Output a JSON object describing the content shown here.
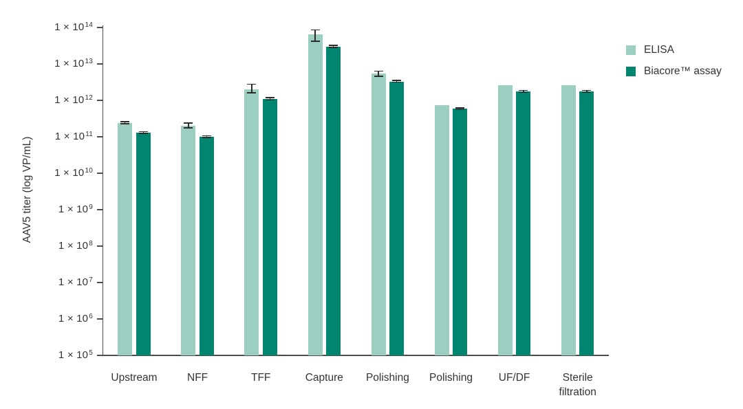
{
  "figure": {
    "background": "#ffffff",
    "axis_color": "#4d4d4d",
    "text_color": "#333333",
    "error_bar_color": "#2b2b2b"
  },
  "legend": {
    "items": [
      {
        "label": "ELISA",
        "color": "#9DCEC2"
      },
      {
        "label": "Biacore™ assay",
        "color": "#008570"
      }
    ]
  },
  "chart_data": {
    "type": "bar",
    "title": "",
    "xlabel": "",
    "ylabel": "AAV5 titer (log VP/mL)",
    "y_scale": "log10",
    "ylim": [
      100000.0,
      100000000000000.0
    ],
    "y_tick_prefix": "1 × 10",
    "y_tick_exponents": [
      14,
      13,
      12,
      11,
      10,
      9,
      8,
      7,
      6,
      5
    ],
    "grid": false,
    "legend_position": "top-right",
    "categories": [
      "Upstream",
      "NFF",
      "TFF",
      "Capture",
      "Polishing",
      "Polishing",
      "UF/DF",
      "Sterile filtration"
    ],
    "series": [
      {
        "name": "ELISA",
        "color": "#9DCEC2",
        "values": [
          240000000000.0,
          200000000000.0,
          2000000000000.0,
          65000000000000.0,
          5500000000000.0,
          740000000000.0,
          2600000000000.0,
          2600000000000.0
        ],
        "err_hi": [
          260000000000.0,
          240000000000.0,
          2800000000000.0,
          87000000000000.0,
          6400000000000.0,
          null,
          null,
          null
        ],
        "err_lo": [
          230000000000.0,
          175000000000.0,
          1600000000000.0,
          42000000000000.0,
          4600000000000.0,
          null,
          null,
          null
        ]
      },
      {
        "name": "Biacore™ assay",
        "color": "#008570",
        "values": [
          130000000000.0,
          100000000000.0,
          1100000000000.0,
          30000000000000.0,
          3300000000000.0,
          590000000000.0,
          1750000000000.0,
          1750000000000.0
        ],
        "err_hi": [
          140000000000.0,
          106000000000.0,
          1200000000000.0,
          32500000000000.0,
          3500000000000.0,
          620000000000.0,
          1900000000000.0,
          1900000000000.0
        ],
        "err_lo": [
          124000000000.0,
          95000000000.0,
          1030000000000.0,
          28500000000000.0,
          3150000000000.0,
          560000000000.0,
          1660000000000.0,
          1660000000000.0
        ]
      }
    ]
  }
}
